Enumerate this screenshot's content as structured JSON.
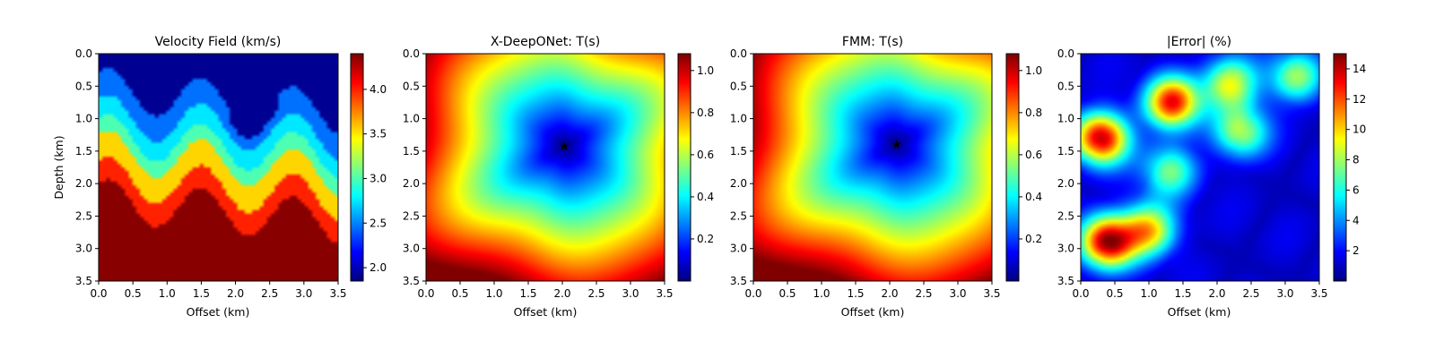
{
  "colors": {
    "colormap": "jet",
    "source_marker": "#ff0000",
    "background": "#ffffff"
  },
  "chart_data": [
    {
      "type": "heatmap",
      "title": "Velocity Field (km/s)",
      "xlabel": "Offset (km)",
      "ylabel": "Depth (km)",
      "xlim": [
        0,
        3.5
      ],
      "ylim": [
        3.5,
        0
      ],
      "xticks": [
        "0.0",
        "0.5",
        "1.0",
        "1.5",
        "2.0",
        "2.5",
        "3.0",
        "3.5"
      ],
      "yticks": [
        "0.0",
        "0.5",
        "1.0",
        "1.5",
        "2.0",
        "2.5",
        "3.0",
        "3.5"
      ],
      "colorbar": {
        "range": [
          1.85,
          4.4
        ],
        "ticks": [
          "2.0",
          "2.5",
          "3.0",
          "3.5",
          "4.0"
        ]
      },
      "field": "layered folded velocity model: low velocity (~1.9) at top, folded anticlines of increasing velocity (2.5–4.4) toward depth"
    },
    {
      "type": "heatmap",
      "title": "X-DeepONet: T(s)",
      "xlabel": "Offset (km)",
      "ylabel": "",
      "xlim": [
        0,
        3.5
      ],
      "ylim": [
        3.5,
        0
      ],
      "xticks": [
        "0.0",
        "0.5",
        "1.0",
        "1.5",
        "2.0",
        "2.5",
        "3.0",
        "3.5"
      ],
      "yticks": [
        "0.0",
        "0.5",
        "1.0",
        "1.5",
        "2.0",
        "2.5",
        "3.0",
        "3.5"
      ],
      "colorbar": {
        "range": [
          0.0,
          1.08
        ],
        "ticks": [
          "0.2",
          "0.4",
          "0.6",
          "0.8",
          "1.0"
        ]
      },
      "source": {
        "x": 2.03,
        "y": 1.42
      },
      "field": "traveltime increasing radially from source"
    },
    {
      "type": "heatmap",
      "title": "FMM: T(s)",
      "xlabel": "Offset (km)",
      "ylabel": "",
      "xlim": [
        0,
        3.5
      ],
      "ylim": [
        3.5,
        0
      ],
      "xticks": [
        "0.0",
        "0.5",
        "1.0",
        "1.5",
        "2.0",
        "2.5",
        "3.0",
        "3.5"
      ],
      "yticks": [
        "0.0",
        "0.5",
        "1.0",
        "1.5",
        "2.0",
        "2.5",
        "3.0",
        "3.5"
      ],
      "colorbar": {
        "range": [
          0.0,
          1.08
        ],
        "ticks": [
          "0.2",
          "0.4",
          "0.6",
          "0.8",
          "1.0"
        ]
      },
      "source": {
        "x": 2.1,
        "y": 1.39
      },
      "field": "traveltime increasing radially from source"
    },
    {
      "type": "heatmap",
      "title": "|Error| (%)",
      "xlabel": "Offset (km)",
      "ylabel": "",
      "xlim": [
        0,
        3.5
      ],
      "ylim": [
        3.5,
        0
      ],
      "xticks": [
        "0.0",
        "0.5",
        "1.0",
        "1.5",
        "2.0",
        "2.5",
        "3.0",
        "3.5"
      ],
      "yticks": [
        "0.0",
        "0.5",
        "1.0",
        "1.5",
        "2.0",
        "2.5",
        "3.0",
        "3.5"
      ],
      "colorbar": {
        "range": [
          0.0,
          15.0
        ],
        "ticks": [
          "2",
          "4",
          "6",
          "8",
          "10",
          "12",
          "14"
        ]
      },
      "hotspots": [
        {
          "x": 0.3,
          "y": 1.3,
          "value": 13
        },
        {
          "x": 1.35,
          "y": 0.75,
          "value": 12
        },
        {
          "x": 2.2,
          "y": 0.45,
          "value": 8
        },
        {
          "x": 2.35,
          "y": 1.2,
          "value": 7
        },
        {
          "x": 0.4,
          "y": 2.9,
          "value": 13.5
        },
        {
          "x": 1.0,
          "y": 2.7,
          "value": 9
        },
        {
          "x": 1.3,
          "y": 1.8,
          "value": 6
        },
        {
          "x": 3.15,
          "y": 0.35,
          "value": 6.5
        }
      ]
    }
  ]
}
